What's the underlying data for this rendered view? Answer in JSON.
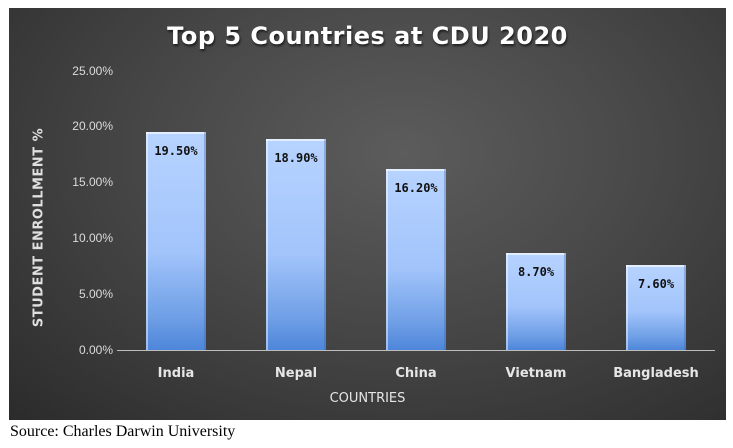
{
  "chart_data": {
    "type": "bar",
    "title": "Top 5 Countries at CDU 2020",
    "categories": [
      "India",
      "Nepal",
      "China",
      "Vietnam",
      "Bangladesh"
    ],
    "values": [
      19.5,
      18.9,
      16.2,
      8.7,
      7.6
    ],
    "value_labels": [
      "19.50%",
      "18.90%",
      "16.20%",
      "8.70%",
      "7.60%"
    ],
    "xlabel": "COUNTRIES",
    "ylabel": "STUDENT ENROLLMENT %",
    "ylim": [
      0,
      25
    ],
    "yticks": [
      "0.00%",
      "5.00%",
      "10.00%",
      "15.00%",
      "20.00%",
      "25.00%"
    ],
    "grid": false,
    "legend": "none",
    "colors": {
      "bar": "#a2c4fb",
      "background": "#4a4a4a"
    }
  },
  "source": "Source: Charles Darwin University"
}
